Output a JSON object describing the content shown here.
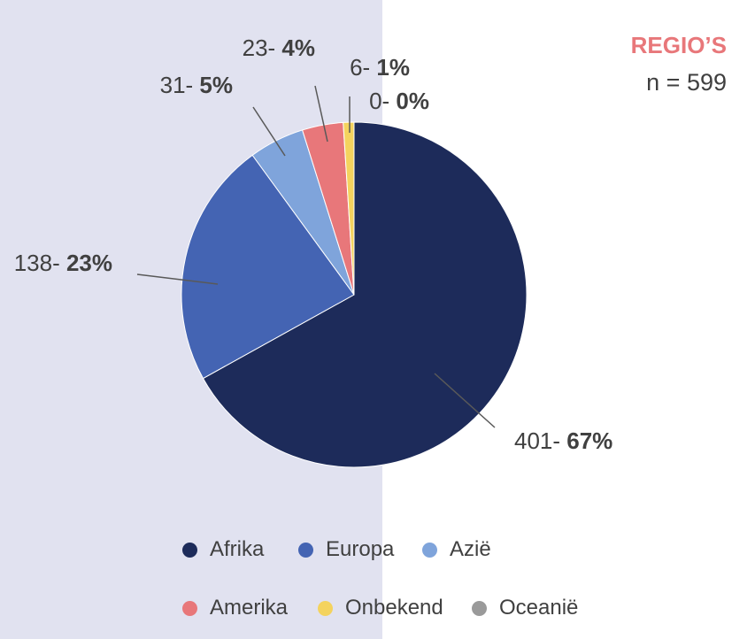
{
  "header": {
    "title": "REGIO’S",
    "subtitle": "n = 599"
  },
  "chart_data": {
    "type": "pie",
    "title": "REGIO’S",
    "subtitle": "n = 599",
    "slices": [
      {
        "label": "Afrika",
        "value": 401,
        "percent_label": "67%",
        "color": "#1d2b5a"
      },
      {
        "label": "Europa",
        "value": 138,
        "percent_label": "23%",
        "color": "#4464b3"
      },
      {
        "label": "Azië",
        "value": 31,
        "percent_label": "5%",
        "color": "#7fa4db"
      },
      {
        "label": "Amerika",
        "value": 23,
        "percent_label": "4%",
        "color": "#e8777a"
      },
      {
        "label": "Onbekend",
        "value": 6,
        "percent_label": "1%",
        "color": "#f4d35e"
      },
      {
        "label": "Oceanië",
        "value": 0,
        "percent_label": "0%",
        "color": "#9a9a9a"
      }
    ],
    "data_label_separator": "- "
  },
  "legend": {
    "items": [
      {
        "label": "Afrika",
        "color": "#1d2b5a"
      },
      {
        "label": "Europa",
        "color": "#4464b3"
      },
      {
        "label": "Azië",
        "color": "#7fa4db"
      },
      {
        "label": "Amerika",
        "color": "#e8777a"
      },
      {
        "label": "Onbekend",
        "color": "#f4d35e"
      },
      {
        "label": "Oceanië",
        "color": "#9a9a9a"
      }
    ]
  }
}
